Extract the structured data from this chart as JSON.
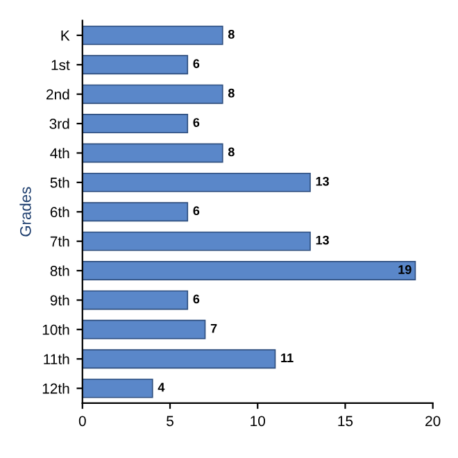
{
  "chart_data": {
    "type": "bar",
    "orientation": "horizontal",
    "ylabel": "Grades",
    "categories": [
      "K",
      "1st",
      "2nd",
      "3rd",
      "4th",
      "5th",
      "6th",
      "7th",
      "8th",
      "9th",
      "10th",
      "11th",
      "12th"
    ],
    "values": [
      8,
      6,
      8,
      6,
      8,
      13,
      6,
      13,
      19,
      6,
      7,
      11,
      4
    ],
    "color": "#5a87c9",
    "xlim": [
      0,
      20
    ],
    "xticks": [
      0,
      5,
      10,
      15,
      20
    ],
    "data_labels": true,
    "grid": false
  }
}
